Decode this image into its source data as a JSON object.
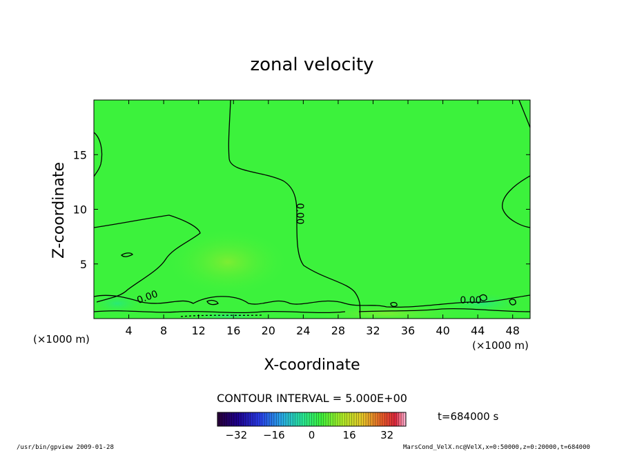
{
  "chart_data": {
    "type": "heatmap",
    "title": "zonal velocity",
    "xlabel": "X-coordinate",
    "ylabel": "Z-coordinate",
    "x_unit_left": "(×1000 m)",
    "x_unit_right": "(×1000 m)",
    "xlim": [
      0,
      50
    ],
    "ylim": [
      0,
      20
    ],
    "xticks": [
      4,
      8,
      12,
      16,
      20,
      24,
      28,
      32,
      36,
      40,
      44,
      48
    ],
    "yticks": [
      5,
      10,
      15
    ],
    "contour_interval_text": "CONTOUR INTERVAL = 5.000E+00",
    "contour_labels": [
      "0.00",
      "0.00",
      "0.00"
    ],
    "time_text": "t=684000 s",
    "colorbar": {
      "min": -40,
      "max": 40,
      "ticks": [
        -32,
        -16,
        0,
        16,
        32
      ]
    },
    "field_value_typical": 0,
    "footer_left": "/usr/bin/gpview  2009-01-28",
    "footer_right": "MarsCond_VelX.nc@VelX,x=0:50000,z=0:20000,t=684000"
  },
  "colors": {
    "field_base": "#3cf23c",
    "field_warm": "#78ec2c",
    "field_cool": "#28e678",
    "contour": "#000000"
  }
}
